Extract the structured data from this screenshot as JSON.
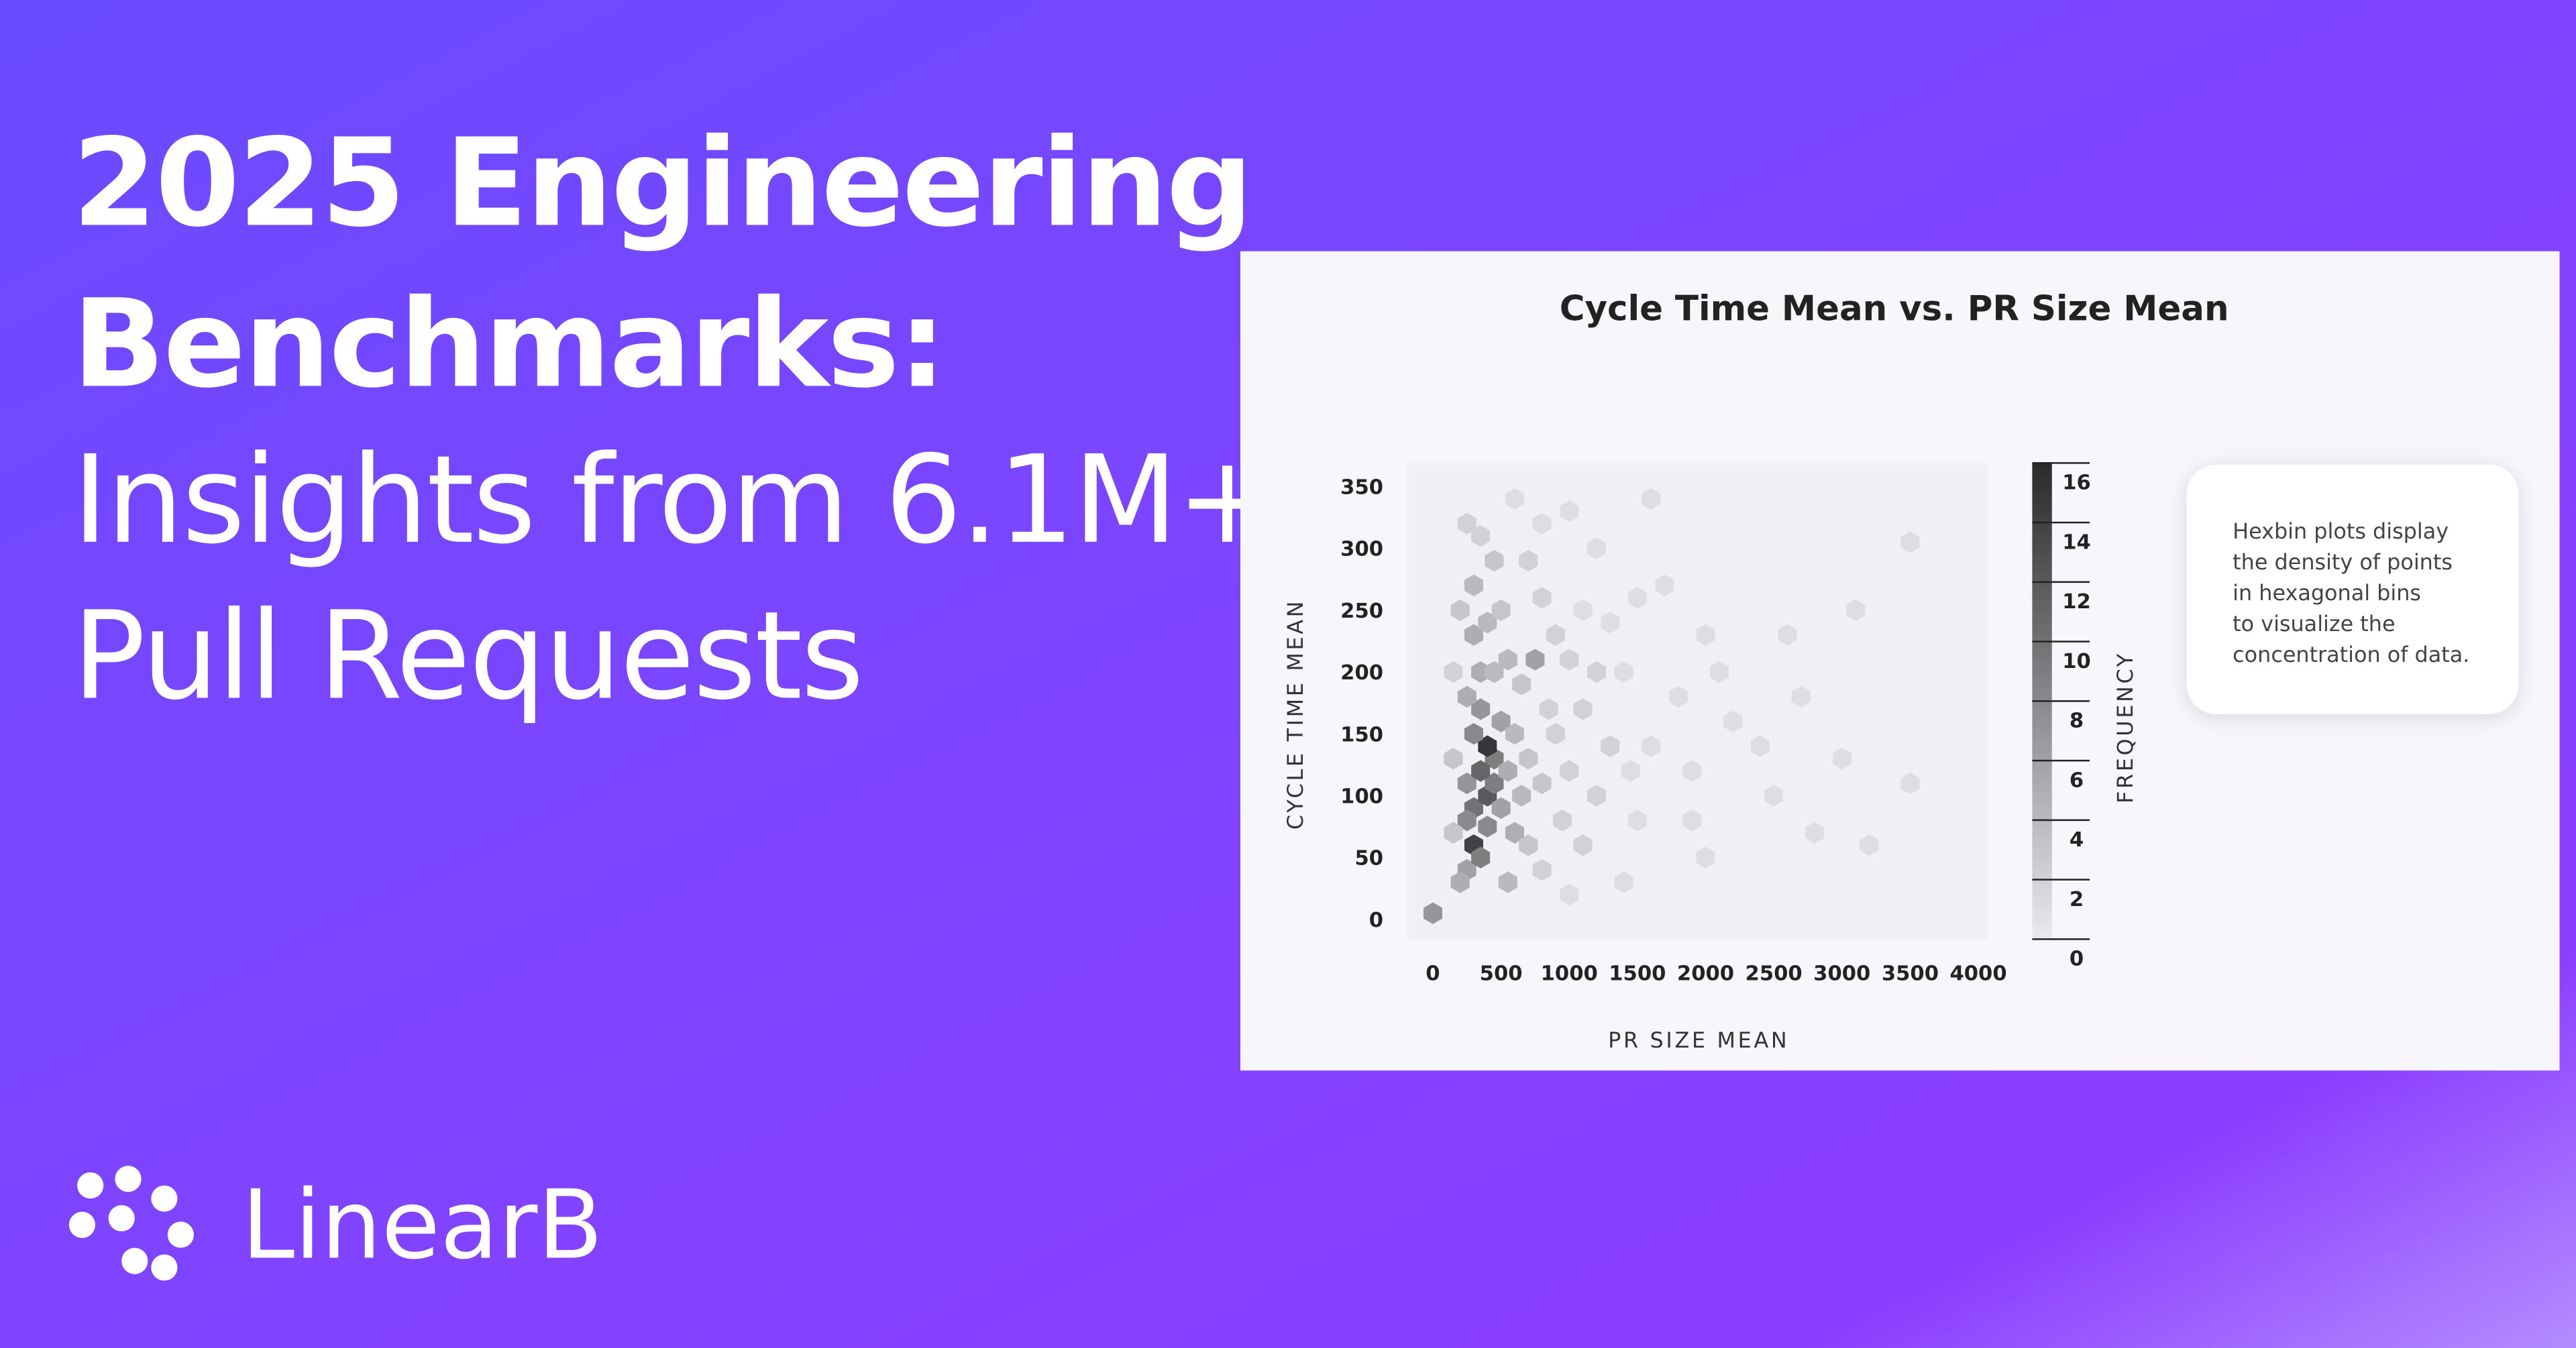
{
  "headline": [
    "2025 Engineering",
    "Benchmarks:",
    "Insights from 6.1M+",
    "Pull Requests"
  ],
  "brand": "LinearB",
  "note": [
    "Hexbin plots display",
    "the density of points",
    "in hexagonal bins",
    "to visualize the",
    "concentration of data."
  ],
  "chart_data": {
    "type": "hexbin",
    "title": "Cycle Time Mean vs. PR Size Mean",
    "x_label": "PR SIZE MEAN",
    "y_label": "CYCLE TIME MEAN",
    "colorbar_label": "FREQUENCY",
    "x": [
      0,
      250,
      300,
      350,
      400,
      300,
      400,
      250,
      450,
      400,
      300,
      350,
      450,
      350,
      250,
      500,
      550,
      500,
      350,
      250,
      450,
      300,
      400,
      500,
      300,
      450,
      350,
      550,
      650,
      600,
      700,
      650,
      600,
      700,
      800,
      850,
      750,
      900,
      800,
      700,
      900,
      1000,
      950,
      1100,
      1200,
      1300,
      1200,
      1100,
      1000,
      1600,
      1500,
      1700,
      2000,
      2100,
      1800,
      1600,
      1900,
      2200,
      2500,
      2700,
      3100,
      3500,
      3500,
      3200,
      2800,
      1900,
      2000,
      1500,
      1400,
      1000,
      800,
      550,
      200,
      150,
      150,
      200,
      150,
      600,
      250,
      1200,
      1400,
      1300,
      2400,
      2600,
      3000,
      1100,
      1000,
      800,
      1450
    ],
    "y": [
      5,
      40,
      60,
      50,
      75,
      90,
      100,
      110,
      130,
      140,
      150,
      170,
      110,
      120,
      80,
      90,
      120,
      160,
      200,
      180,
      200,
      230,
      240,
      250,
      270,
      290,
      310,
      210,
      190,
      150,
      130,
      100,
      70,
      60,
      110,
      170,
      210,
      230,
      260,
      290,
      150,
      120,
      80,
      60,
      100,
      140,
      200,
      250,
      330,
      340,
      260,
      270,
      230,
      200,
      180,
      140,
      120,
      160,
      100,
      180,
      250,
      305,
      110,
      60,
      70,
      80,
      50,
      80,
      30,
      20,
      40,
      30,
      30,
      70,
      130,
      250,
      200,
      340,
      320,
      300,
      200,
      240,
      140,
      230,
      130,
      170,
      210,
      320,
      120
    ],
    "values": [
      7,
      6,
      14,
      9,
      8,
      10,
      12,
      7,
      9,
      15,
      8,
      7,
      9,
      11,
      8,
      6,
      5,
      6,
      5,
      5,
      4,
      5,
      4,
      3,
      4,
      3,
      2,
      4,
      3,
      4,
      3,
      4,
      5,
      3,
      3,
      2,
      6,
      2,
      2,
      2,
      2,
      2,
      2,
      2,
      2,
      2,
      2,
      1,
      1,
      1,
      1,
      1,
      1,
      1,
      1,
      1,
      1,
      1,
      1,
      1,
      1,
      1,
      1,
      1,
      1,
      1,
      1,
      1,
      1,
      1,
      2,
      4,
      5,
      3,
      3,
      3,
      2,
      1,
      2,
      1,
      1,
      1,
      1,
      1,
      1,
      2,
      2,
      1,
      1
    ],
    "xlim": [
      -195,
      4070
    ],
    "ylim": [
      -16,
      369
    ],
    "xticks": [
      0,
      500,
      1000,
      1500,
      2000,
      2500,
      3000,
      3500,
      4000
    ],
    "yticks": [
      0,
      50,
      100,
      150,
      200,
      250,
      300,
      350
    ],
    "clim": [
      0,
      16
    ],
    "cticks": [
      0,
      2,
      4,
      6,
      8,
      10,
      12,
      14,
      16
    ],
    "cmap": [
      "#e9e9ef",
      "#2a2a2c"
    ]
  }
}
